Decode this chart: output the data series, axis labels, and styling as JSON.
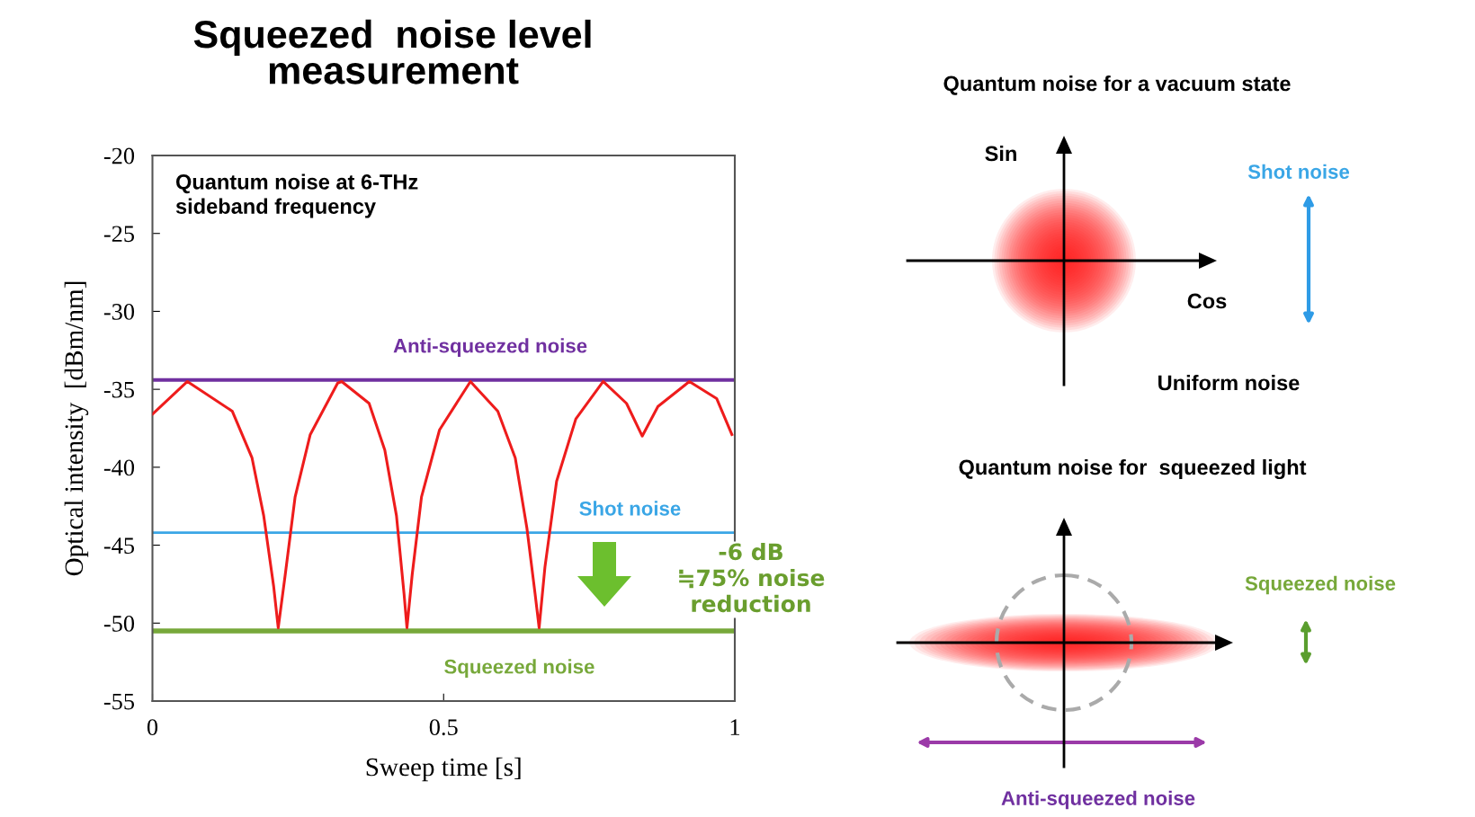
{
  "chart_data": {
    "type": "line",
    "title": "Squeezed  noise level\nmeasurement",
    "xlabel": "Sweep time [s]",
    "ylabel": "Optical intensity  [dBm/nm]",
    "xlim": [
      0,
      1
    ],
    "xticks": [
      0,
      0.5,
      1
    ],
    "ylim": [
      -55,
      -20
    ],
    "yticks": [
      -20,
      -25,
      -30,
      -35,
      -40,
      -45,
      -50,
      -55
    ],
    "grid": false,
    "legend": false,
    "marker": "none",
    "line_style": "solid",
    "series": [
      {
        "color": "#ee1c1c",
        "x": [
          0,
          0.06,
          0.137,
          0.171,
          0.191,
          0.208,
          0.216,
          0.228,
          0.245,
          0.271,
          0.318,
          0.325,
          0.372,
          0.399,
          0.419,
          0.432,
          0.437,
          0.446,
          0.462,
          0.493,
          0.546,
          0.593,
          0.623,
          0.643,
          0.657,
          0.664,
          0.674,
          0.694,
          0.727,
          0.774,
          0.814,
          0.841,
          0.868,
          0.922,
          0.969,
          0.995
        ],
        "values": [
          -36.6,
          -34.5,
          -36.4,
          -39.4,
          -43.1,
          -47.6,
          -50.3,
          -46.9,
          -41.9,
          -37.9,
          -34.6,
          -34.5,
          -35.9,
          -38.9,
          -43.1,
          -48.1,
          -50.3,
          -46.9,
          -41.9,
          -37.6,
          -34.5,
          -36.4,
          -39.4,
          -43.9,
          -48.1,
          -50.3,
          -46.4,
          -40.9,
          -36.9,
          -34.5,
          -35.9,
          -38.0,
          -36.1,
          -34.5,
          -35.6,
          -37.9
        ]
      }
    ],
    "ref_lines": [
      {
        "axis": "y",
        "value": -34.4,
        "label": "Anti-squeezed noise",
        "color": "#7030a0"
      },
      {
        "axis": "y",
        "value": -44.2,
        "label": "Shot noise",
        "color": "#3aa6e6"
      },
      {
        "axis": "y",
        "value": -50.5,
        "label": "Squeezed noise",
        "color": "#77a83a"
      }
    ],
    "annotations": [
      "Quantum noise at 6-THz\nsideband frequency",
      "-6 dB\n≒75% noise\nreduction",
      "Quantum noise for a vacuum state",
      "Sin",
      "Cos",
      "Shot noise",
      "Uniform noise",
      "Quantum noise for  squeezed light",
      "Squeezed noise",
      "Anti-squeezed noise"
    ]
  }
}
